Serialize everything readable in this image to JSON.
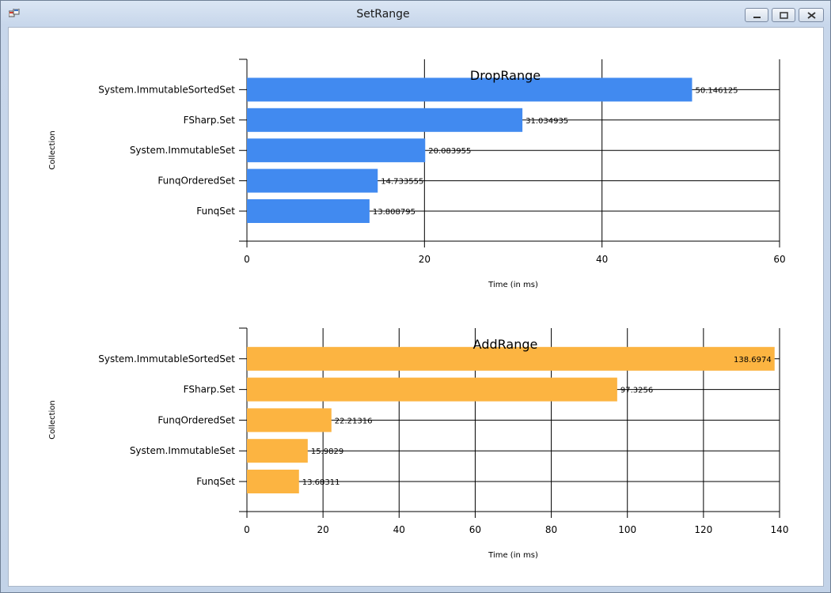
{
  "window": {
    "title": "SetRange",
    "app_icon": "winforms-app-icon",
    "controls": [
      "minimize-icon",
      "maximize-icon",
      "close-icon"
    ]
  },
  "chart_data": [
    {
      "type": "bar",
      "orientation": "horizontal",
      "title": "DropRange",
      "xlabel": "Time (in ms)",
      "ylabel": "Collection",
      "categories": [
        "System.ImmutableSortedSet",
        "FSharp.Set",
        "System.ImmutableSet",
        "FunqOrderedSet",
        "FunqSet"
      ],
      "values": [
        50.146125,
        31.034935,
        20.083955,
        14.733555,
        13.808795
      ],
      "value_labels": [
        "50.146125",
        "31.034935",
        "20.083955",
        "14.733555",
        "13.808795"
      ],
      "xlim": [
        0,
        60
      ],
      "xticks": [
        0,
        20,
        40,
        60
      ],
      "grid": true,
      "color": "#418af0"
    },
    {
      "type": "bar",
      "orientation": "horizontal",
      "title": "AddRange",
      "xlabel": "Time (in ms)",
      "ylabel": "Collection",
      "categories": [
        "System.ImmutableSortedSet",
        "FSharp.Set",
        "FunqOrderedSet",
        "System.ImmutableSet",
        "FunqSet"
      ],
      "values": [
        138.6974,
        97.3256,
        22.21316,
        15.9829,
        13.68311
      ],
      "value_labels": [
        "138.6974",
        "97.3256",
        "22.21316",
        "15.9829",
        "13.68311"
      ],
      "xlim": [
        0,
        140
      ],
      "xticks": [
        0,
        20,
        40,
        60,
        80,
        100,
        120,
        140
      ],
      "grid": true,
      "color": "#fcb441"
    }
  ]
}
